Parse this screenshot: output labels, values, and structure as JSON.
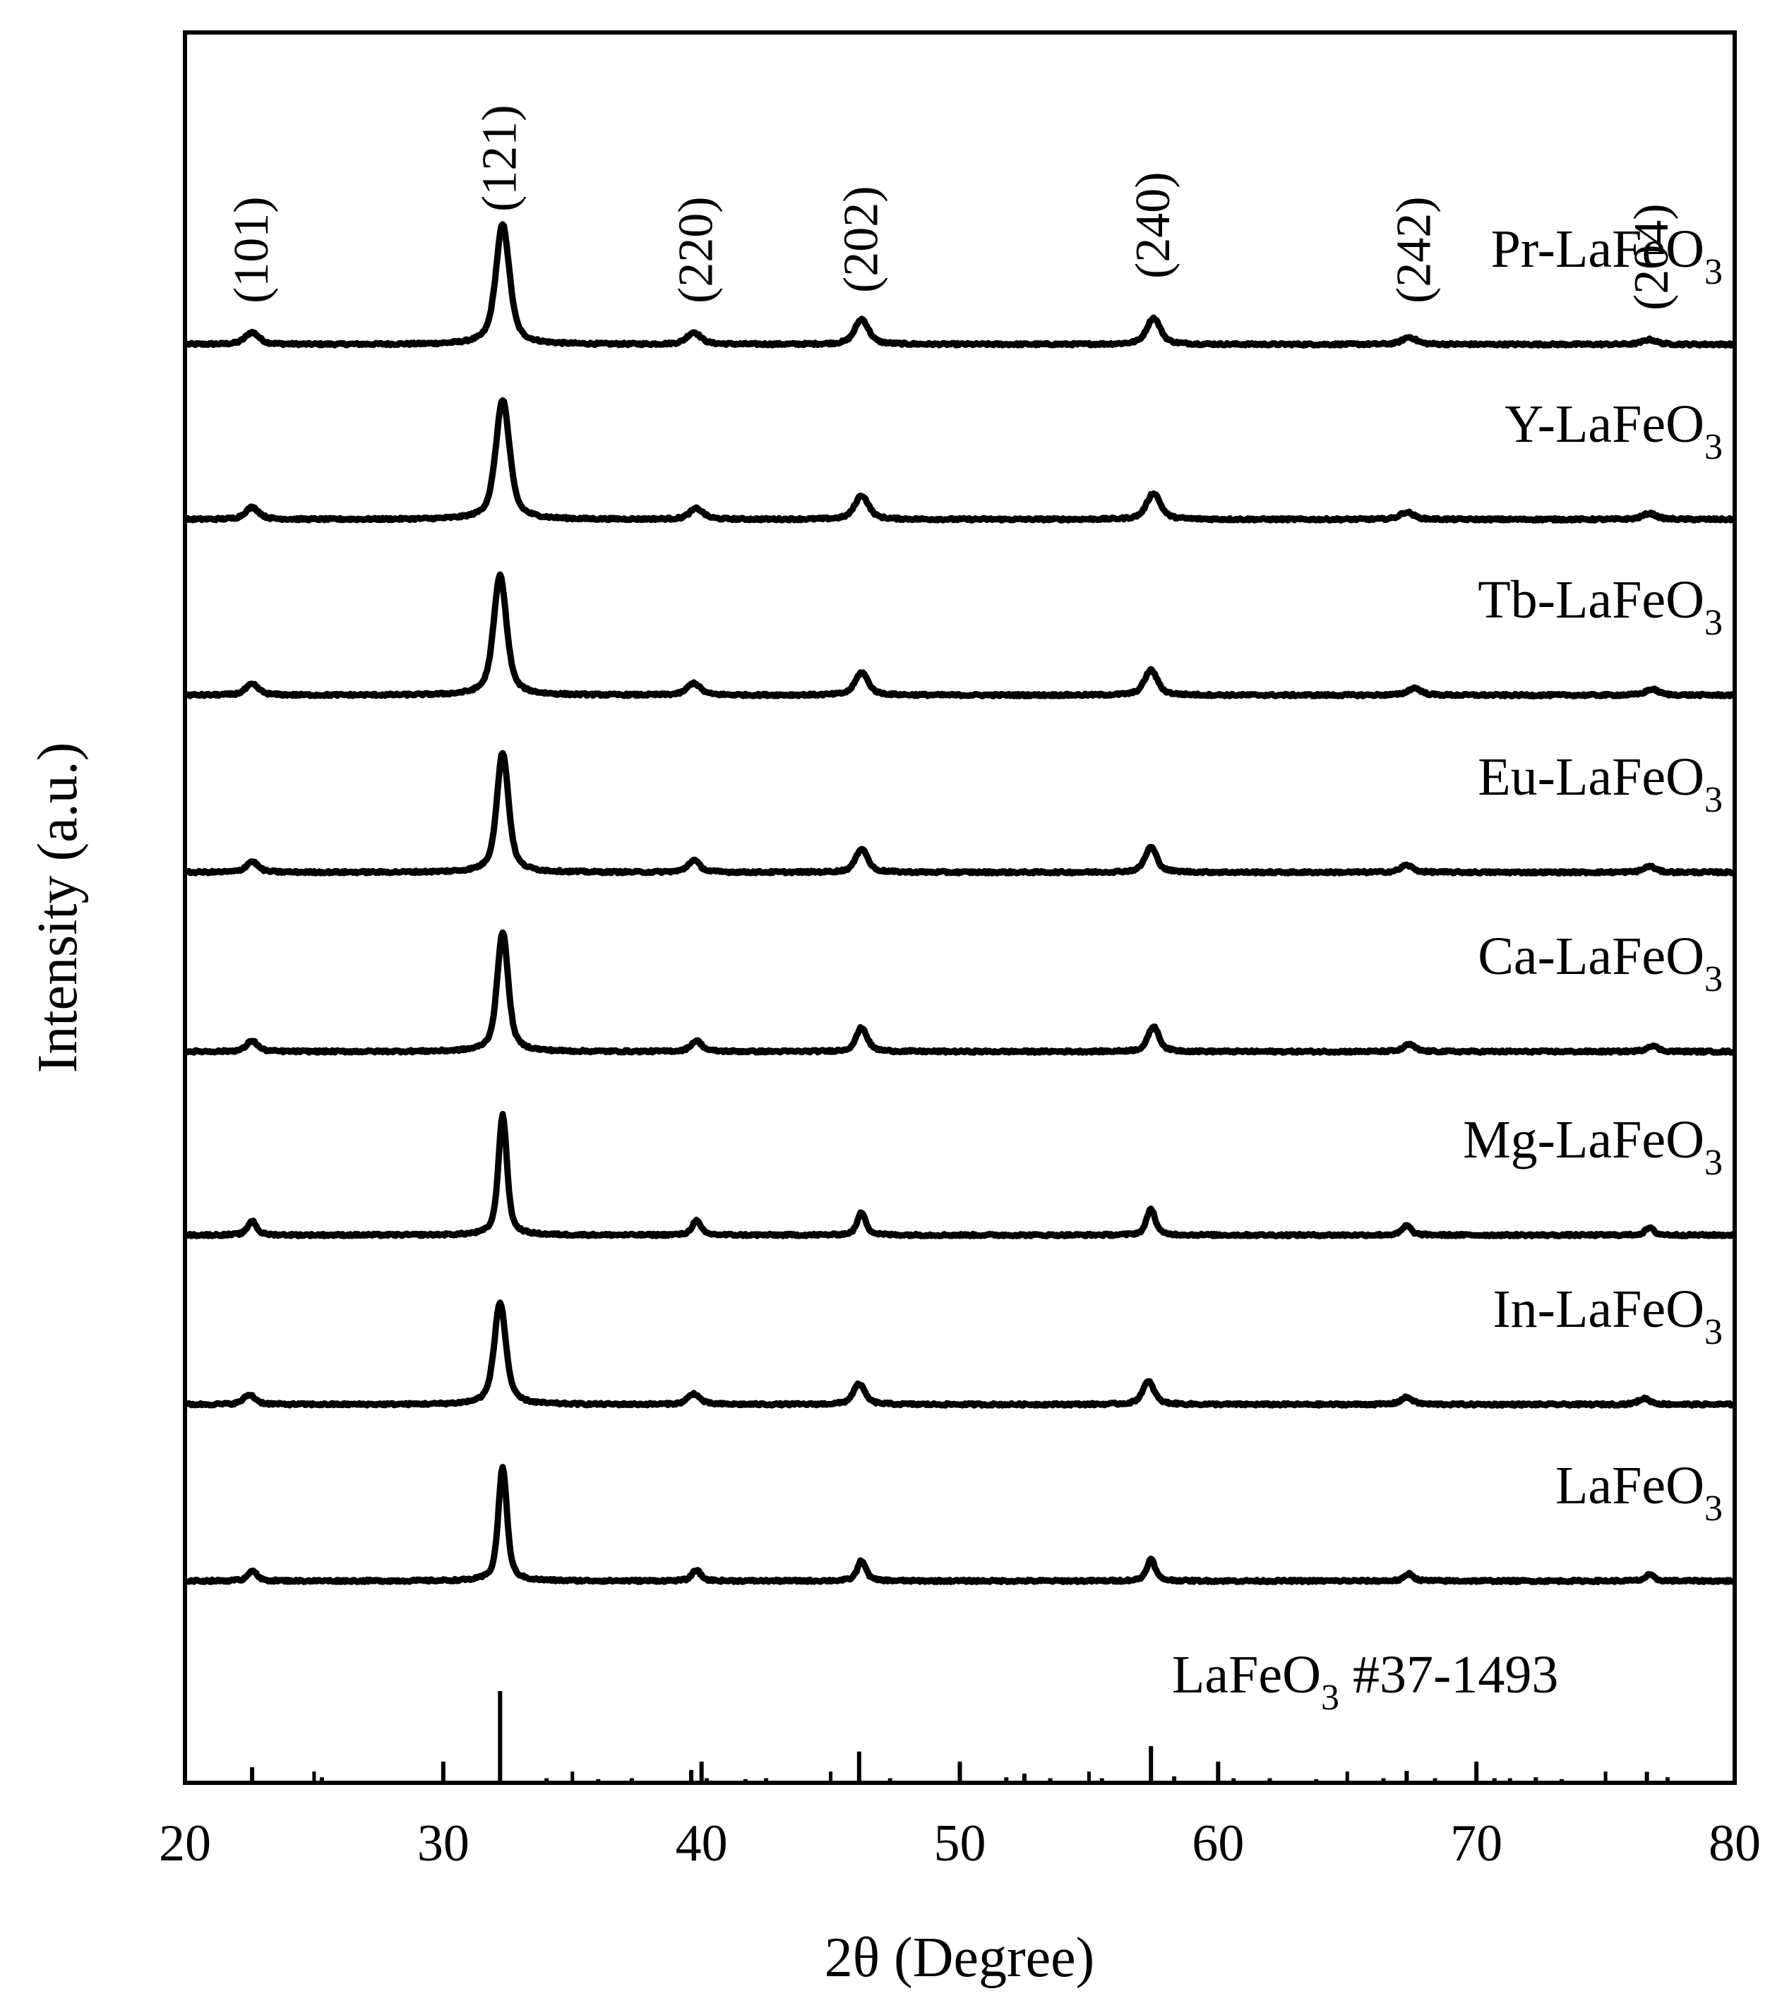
{
  "chart_data": {
    "type": "line",
    "title": "",
    "xlabel": "2θ (Degree)",
    "ylabel": "Intensity (a.u.)",
    "xlim": [
      20,
      80
    ],
    "x_ticks": [
      "20",
      "30",
      "40",
      "50",
      "60",
      "70",
      "80"
    ],
    "peak_labels": [
      {
        "hkl": "(101)",
        "x": 22.6
      },
      {
        "hkl": "(121)",
        "x": 32.2
      },
      {
        "hkl": "(220)",
        "x": 39.8
      },
      {
        "hkl": "(202)",
        "x": 46.2
      },
      {
        "hkl": "(240)",
        "x": 57.5
      },
      {
        "hkl": "(242)",
        "x": 67.6
      },
      {
        "hkl": "(204)",
        "x": 76.8
      }
    ],
    "series": [
      {
        "name": "Pr-LaFeO",
        "subscript": "3",
        "peaks": [
          [
            22.6,
            0.1
          ],
          [
            32.3,
            1.0
          ],
          [
            39.7,
            0.1
          ],
          [
            46.2,
            0.21
          ],
          [
            57.5,
            0.22
          ],
          [
            67.4,
            0.06
          ],
          [
            76.7,
            0.04
          ]
        ],
        "width": 0.35
      },
      {
        "name": "Y-LaFeO",
        "subscript": "3",
        "peaks": [
          [
            22.6,
            0.1
          ],
          [
            32.3,
            1.0
          ],
          [
            39.8,
            0.09
          ],
          [
            46.2,
            0.2
          ],
          [
            57.5,
            0.22
          ],
          [
            67.3,
            0.06
          ],
          [
            76.7,
            0.05
          ]
        ],
        "width": 0.35
      },
      {
        "name": "Tb-LaFeO",
        "subscript": "3",
        "peaks": [
          [
            22.6,
            0.09
          ],
          [
            32.2,
            1.0
          ],
          [
            39.7,
            0.1
          ],
          [
            46.2,
            0.19
          ],
          [
            57.4,
            0.21
          ],
          [
            67.6,
            0.06
          ],
          [
            76.8,
            0.05
          ]
        ],
        "width": 0.33
      },
      {
        "name": "Eu-LaFeO",
        "subscript": "3",
        "peaks": [
          [
            22.6,
            0.09
          ],
          [
            32.3,
            1.0
          ],
          [
            39.7,
            0.1
          ],
          [
            46.2,
            0.2
          ],
          [
            57.4,
            0.21
          ],
          [
            67.3,
            0.06
          ],
          [
            76.7,
            0.05
          ]
        ],
        "width": 0.3
      },
      {
        "name": "Ca-LaFeO",
        "subscript": "3",
        "peaks": [
          [
            22.6,
            0.09
          ],
          [
            32.3,
            1.0
          ],
          [
            39.8,
            0.09
          ],
          [
            46.2,
            0.2
          ],
          [
            57.5,
            0.21
          ],
          [
            67.4,
            0.06
          ],
          [
            76.8,
            0.05
          ]
        ],
        "width": 0.28
      },
      {
        "name": "Mg-LaFeO",
        "subscript": "3",
        "peaks": [
          [
            22.6,
            0.12
          ],
          [
            32.3,
            1.0
          ],
          [
            39.8,
            0.12
          ],
          [
            46.2,
            0.19
          ],
          [
            57.4,
            0.22
          ],
          [
            67.3,
            0.08
          ],
          [
            76.7,
            0.06
          ]
        ],
        "width": 0.22
      },
      {
        "name": "In-LaFeO",
        "subscript": "3",
        "peaks": [
          [
            22.5,
            0.08
          ],
          [
            32.2,
            0.85
          ],
          [
            39.7,
            0.09
          ],
          [
            46.1,
            0.17
          ],
          [
            57.3,
            0.19
          ],
          [
            67.3,
            0.06
          ],
          [
            76.5,
            0.05
          ]
        ],
        "width": 0.3
      },
      {
        "name": "LaFeO",
        "subscript": "3",
        "peaks": [
          [
            22.6,
            0.09
          ],
          [
            32.3,
            0.95
          ],
          [
            39.8,
            0.09
          ],
          [
            46.2,
            0.17
          ],
          [
            57.4,
            0.18
          ],
          [
            67.4,
            0.06
          ],
          [
            76.7,
            0.05
          ]
        ],
        "width": 0.22
      }
    ],
    "reference": {
      "name": "LaFeO",
      "subscript": "3",
      "suffix": " #37-1493",
      "sticks": [
        [
          22.6,
          0.17
        ],
        [
          25.3,
          0.06
        ],
        [
          32.2,
          1.0
        ],
        [
          34.0,
          0.05
        ],
        [
          36.0,
          0.04
        ],
        [
          37.3,
          0.05
        ],
        [
          39.6,
          0.14
        ],
        [
          40.2,
          0.05
        ],
        [
          41.7,
          0.04
        ],
        [
          42.5,
          0.05
        ],
        [
          46.1,
          0.34
        ],
        [
          47.3,
          0.05
        ],
        [
          51.8,
          0.06
        ],
        [
          52.5,
          0.1
        ],
        [
          53.5,
          0.05
        ],
        [
          55.5,
          0.05
        ],
        [
          57.4,
          0.4
        ],
        [
          58.3,
          0.07
        ],
        [
          60.6,
          0.05
        ],
        [
          62.0,
          0.05
        ],
        [
          63.8,
          0.04
        ],
        [
          66.4,
          0.05
        ],
        [
          67.3,
          0.13
        ],
        [
          68.4,
          0.05
        ],
        [
          70.7,
          0.05
        ],
        [
          71.3,
          0.05
        ],
        [
          72.3,
          0.06
        ],
        [
          73.3,
          0.04
        ],
        [
          76.6,
          0.12
        ],
        [
          77.4,
          0.06
        ]
      ]
    }
  }
}
